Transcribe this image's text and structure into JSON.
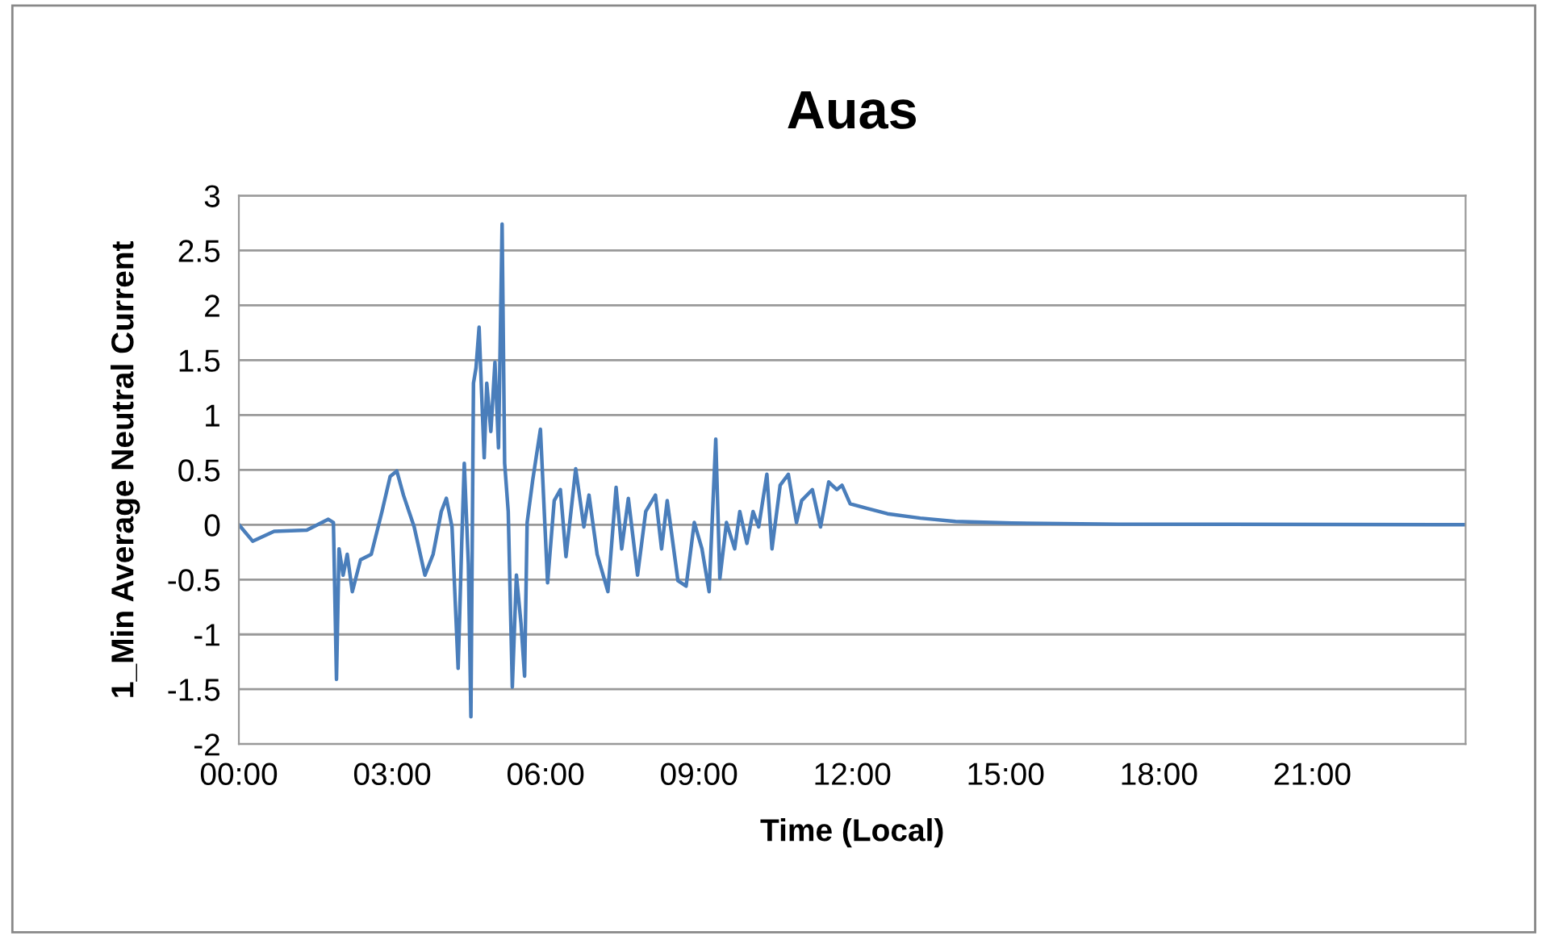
{
  "chart_data": {
    "type": "line",
    "title": "Auas",
    "xlabel": "Time (Local)",
    "ylabel": "1_Min Average Neutral Current",
    "grid": "y",
    "marker": "none",
    "line_style": "solid",
    "xlim": [
      0,
      24
    ],
    "ylim": [
      -2,
      3
    ],
    "xticks": [
      {
        "value": 0,
        "label": "00:00"
      },
      {
        "value": 3,
        "label": "03:00"
      },
      {
        "value": 6,
        "label": "06:00"
      },
      {
        "value": 9,
        "label": "09:00"
      },
      {
        "value": 12,
        "label": "12:00"
      },
      {
        "value": 15,
        "label": "15:00"
      },
      {
        "value": 18,
        "label": "18:00"
      },
      {
        "value": 21,
        "label": "21:00"
      }
    ],
    "yticks": [
      -2,
      -1.5,
      -1,
      -0.5,
      0,
      0.5,
      1,
      1.5,
      2,
      2.5,
      3
    ],
    "series": [
      {
        "color": "#4a7ebb",
        "x": [
          0,
          0.27,
          0.69,
          1.33,
          1.75,
          1.85,
          1.91,
          1.96,
          2.04,
          2.12,
          2.22,
          2.38,
          2.59,
          2.8,
          2.96,
          3.09,
          3.22,
          3.43,
          3.64,
          3.8,
          3.96,
          4.06,
          4.17,
          4.29,
          4.36,
          4.41,
          4.49,
          4.54,
          4.59,
          4.64,
          4.7,
          4.75,
          4.8,
          4.85,
          4.93,
          5.01,
          5.08,
          5.15,
          5.2,
          5.27,
          5.35,
          5.43,
          5.52,
          5.59,
          5.64,
          5.75,
          5.9,
          6.04,
          6.17,
          6.29,
          6.4,
          6.59,
          6.75,
          6.85,
          7.01,
          7.22,
          7.38,
          7.49,
          7.62,
          7.8,
          7.96,
          8.15,
          8.27,
          8.38,
          8.59,
          8.75,
          8.91,
          9.06,
          9.2,
          9.33,
          9.41,
          9.54,
          9.7,
          9.8,
          9.94,
          10.06,
          10.17,
          10.33,
          10.43,
          10.59,
          10.75,
          10.91,
          11.01,
          11.22,
          11.38,
          11.54,
          11.7,
          11.8,
          11.96,
          12.28,
          12.69,
          13.33,
          14.02,
          15.12,
          17.2,
          24
        ],
        "values": [
          0,
          -0.15,
          -0.06,
          -0.05,
          0.05,
          0.02,
          -1.41,
          -0.22,
          -0.46,
          -0.27,
          -0.61,
          -0.32,
          -0.27,
          0.12,
          0.44,
          0.49,
          0.27,
          -0.02,
          -0.46,
          -0.27,
          0.12,
          0.24,
          -0.02,
          -1.31,
          -0.17,
          0.56,
          -0.36,
          -1.75,
          1.29,
          1.43,
          1.8,
          1.19,
          0.61,
          1.29,
          0.85,
          1.48,
          0.7,
          2.74,
          0.56,
          0.12,
          -1.48,
          -0.46,
          -0.9,
          -1.38,
          0.02,
          0.41,
          0.87,
          -0.53,
          0.22,
          0.32,
          -0.29,
          0.51,
          -0.02,
          0.27,
          -0.27,
          -0.61,
          0.34,
          -0.22,
          0.24,
          -0.46,
          0.12,
          0.27,
          -0.22,
          0.22,
          -0.51,
          -0.56,
          0.02,
          -0.22,
          -0.61,
          0.78,
          -0.49,
          0.02,
          -0.22,
          0.12,
          -0.17,
          0.12,
          -0.02,
          0.46,
          -0.22,
          0.36,
          0.46,
          0.02,
          0.22,
          0.32,
          -0.02,
          0.39,
          0.32,
          0.36,
          0.19,
          0.15,
          0.1,
          0.06,
          0.03,
          0.015,
          0.005,
          0
        ]
      }
    ]
  }
}
